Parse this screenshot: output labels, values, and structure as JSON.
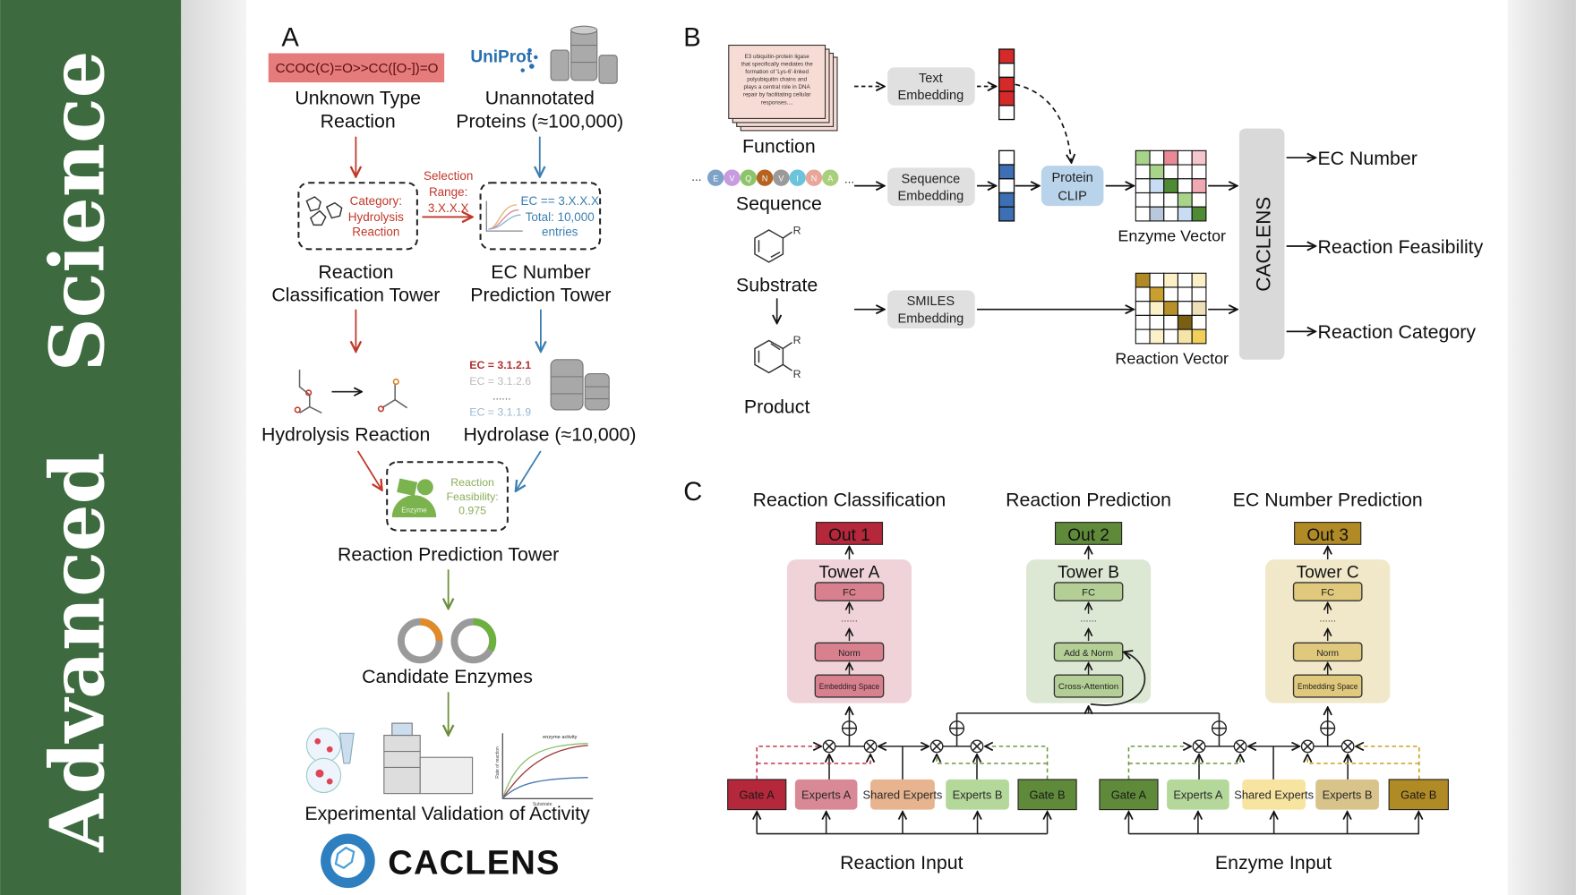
{
  "banner": {
    "line1": "Advanced",
    "line2": "Science",
    "color": "#3d6b3f"
  },
  "panel_a": {
    "label": "A",
    "smiles": "CCOC(C)=O>>CC([O-])=O",
    "uniprot": "UniProt",
    "unknown_type": [
      "Unknown Type",
      "Reaction"
    ],
    "unannotated": [
      "Unannotated",
      "Proteins (≈100,000)"
    ],
    "category_box": [
      "Category:",
      "Hydrolysis",
      "Reaction"
    ],
    "selection": [
      "Selection",
      "Range:",
      "3.X.X.X"
    ],
    "ec_box": [
      "EC == 3.X.X.X",
      "Total: 10,000",
      "entries"
    ],
    "classification_tower": [
      "Reaction",
      "Classification Tower"
    ],
    "ec_tower": [
      "EC Number",
      "Prediction Tower"
    ],
    "ec_list": [
      "EC = 3.1.2.1",
      "EC = 3.1.2.6",
      "......",
      "EC = 3.1.1.9"
    ],
    "hydrolysis": "Hydrolysis Reaction",
    "hydrolase": "Hydrolase (≈10,000)",
    "enzyme": "Enzyme",
    "feasibility": [
      "Reaction",
      "Feasibility:",
      "0.975"
    ],
    "prediction_tower": "Reaction Prediction Tower",
    "candidates": "Candidate Enzymes",
    "activity_chart": {
      "title": "enzyme activity",
      "ylabel": "Rate of reaction",
      "xlabel": "Substrate"
    },
    "validation": "Experimental Validation of Activity",
    "logo": "CACLENS"
  },
  "panel_b": {
    "label": "B",
    "function_text": [
      "E3 ubiquitin-protein ligase",
      "that specifically mediates the",
      "formation of 'Lys-6'-linked",
      "polyubiquitin chains and",
      "plays a central role in DNA",
      "repair by facilitating cellular",
      "responses...."
    ],
    "function": "Function",
    "residues": [
      "E",
      "V",
      "Q",
      "N",
      "V",
      "I",
      "N",
      "A"
    ],
    "ellipsis": "...",
    "sequence": "Sequence",
    "substrate": "Substrate",
    "product": "Product",
    "r_group": "R",
    "text_embedding": [
      "Text",
      "Embedding"
    ],
    "sequence_embedding": [
      "Sequence",
      "Embedding"
    ],
    "smiles_embedding": [
      "SMILES",
      "Embedding"
    ],
    "protein_clip": [
      "Protein",
      "CLIP"
    ],
    "enzyme_vector": "Enzyme Vector",
    "reaction_vector": "Reaction Vector",
    "caclens": "CACLENS",
    "outputs": [
      "EC Number",
      "Reaction Feasibility",
      "Reaction Category"
    ]
  },
  "panel_c": {
    "label": "C",
    "tasks": [
      {
        "title": "Reaction Classification",
        "out": "Out 1",
        "tower": "Tower A",
        "layers": [
          "FC",
          "......",
          "Norm",
          "Embedding Space"
        ],
        "color": "#b5273a",
        "bg": "#f0d3d8",
        "box": "#d9808f"
      },
      {
        "title": "Reaction Prediction",
        "out": "Out 2",
        "tower": "Tower B",
        "layers": [
          "FC",
          "......",
          "Add & Norm",
          "Cross-Attention"
        ],
        "color": "#5f8a3a",
        "bg": "#dde8d4",
        "box": "#b4cf96"
      },
      {
        "title": "EC Number Prediction",
        "out": "Out 3",
        "tower": "Tower C",
        "layers": [
          "FC",
          "......",
          "Norm",
          "Embedding Space"
        ],
        "color": "#b08a25",
        "bg": "#f0e8c8",
        "box": "#e0c97c"
      }
    ],
    "reaction_experts": [
      {
        "label": "Gate A",
        "color": "#b5273a"
      },
      {
        "label": "Experts A",
        "color": "#d98896"
      },
      {
        "label": "Shared Experts",
        "color": "#e8b48f"
      },
      {
        "label": "Experts B",
        "color": "#b4d79a"
      },
      {
        "label": "Gate B",
        "color": "#5f8a3a"
      }
    ],
    "enzyme_experts": [
      {
        "label": "Gate A",
        "color": "#5f8a3a"
      },
      {
        "label": "Experts A",
        "color": "#b4d79a"
      },
      {
        "label": "Shared Experts",
        "color": "#f7e4a0"
      },
      {
        "label": "Experts B",
        "color": "#d8c48a"
      },
      {
        "label": "Gate B",
        "color": "#b08a25"
      }
    ],
    "reaction_input": "Reaction Input",
    "enzyme_input": "Enzyme Input"
  }
}
